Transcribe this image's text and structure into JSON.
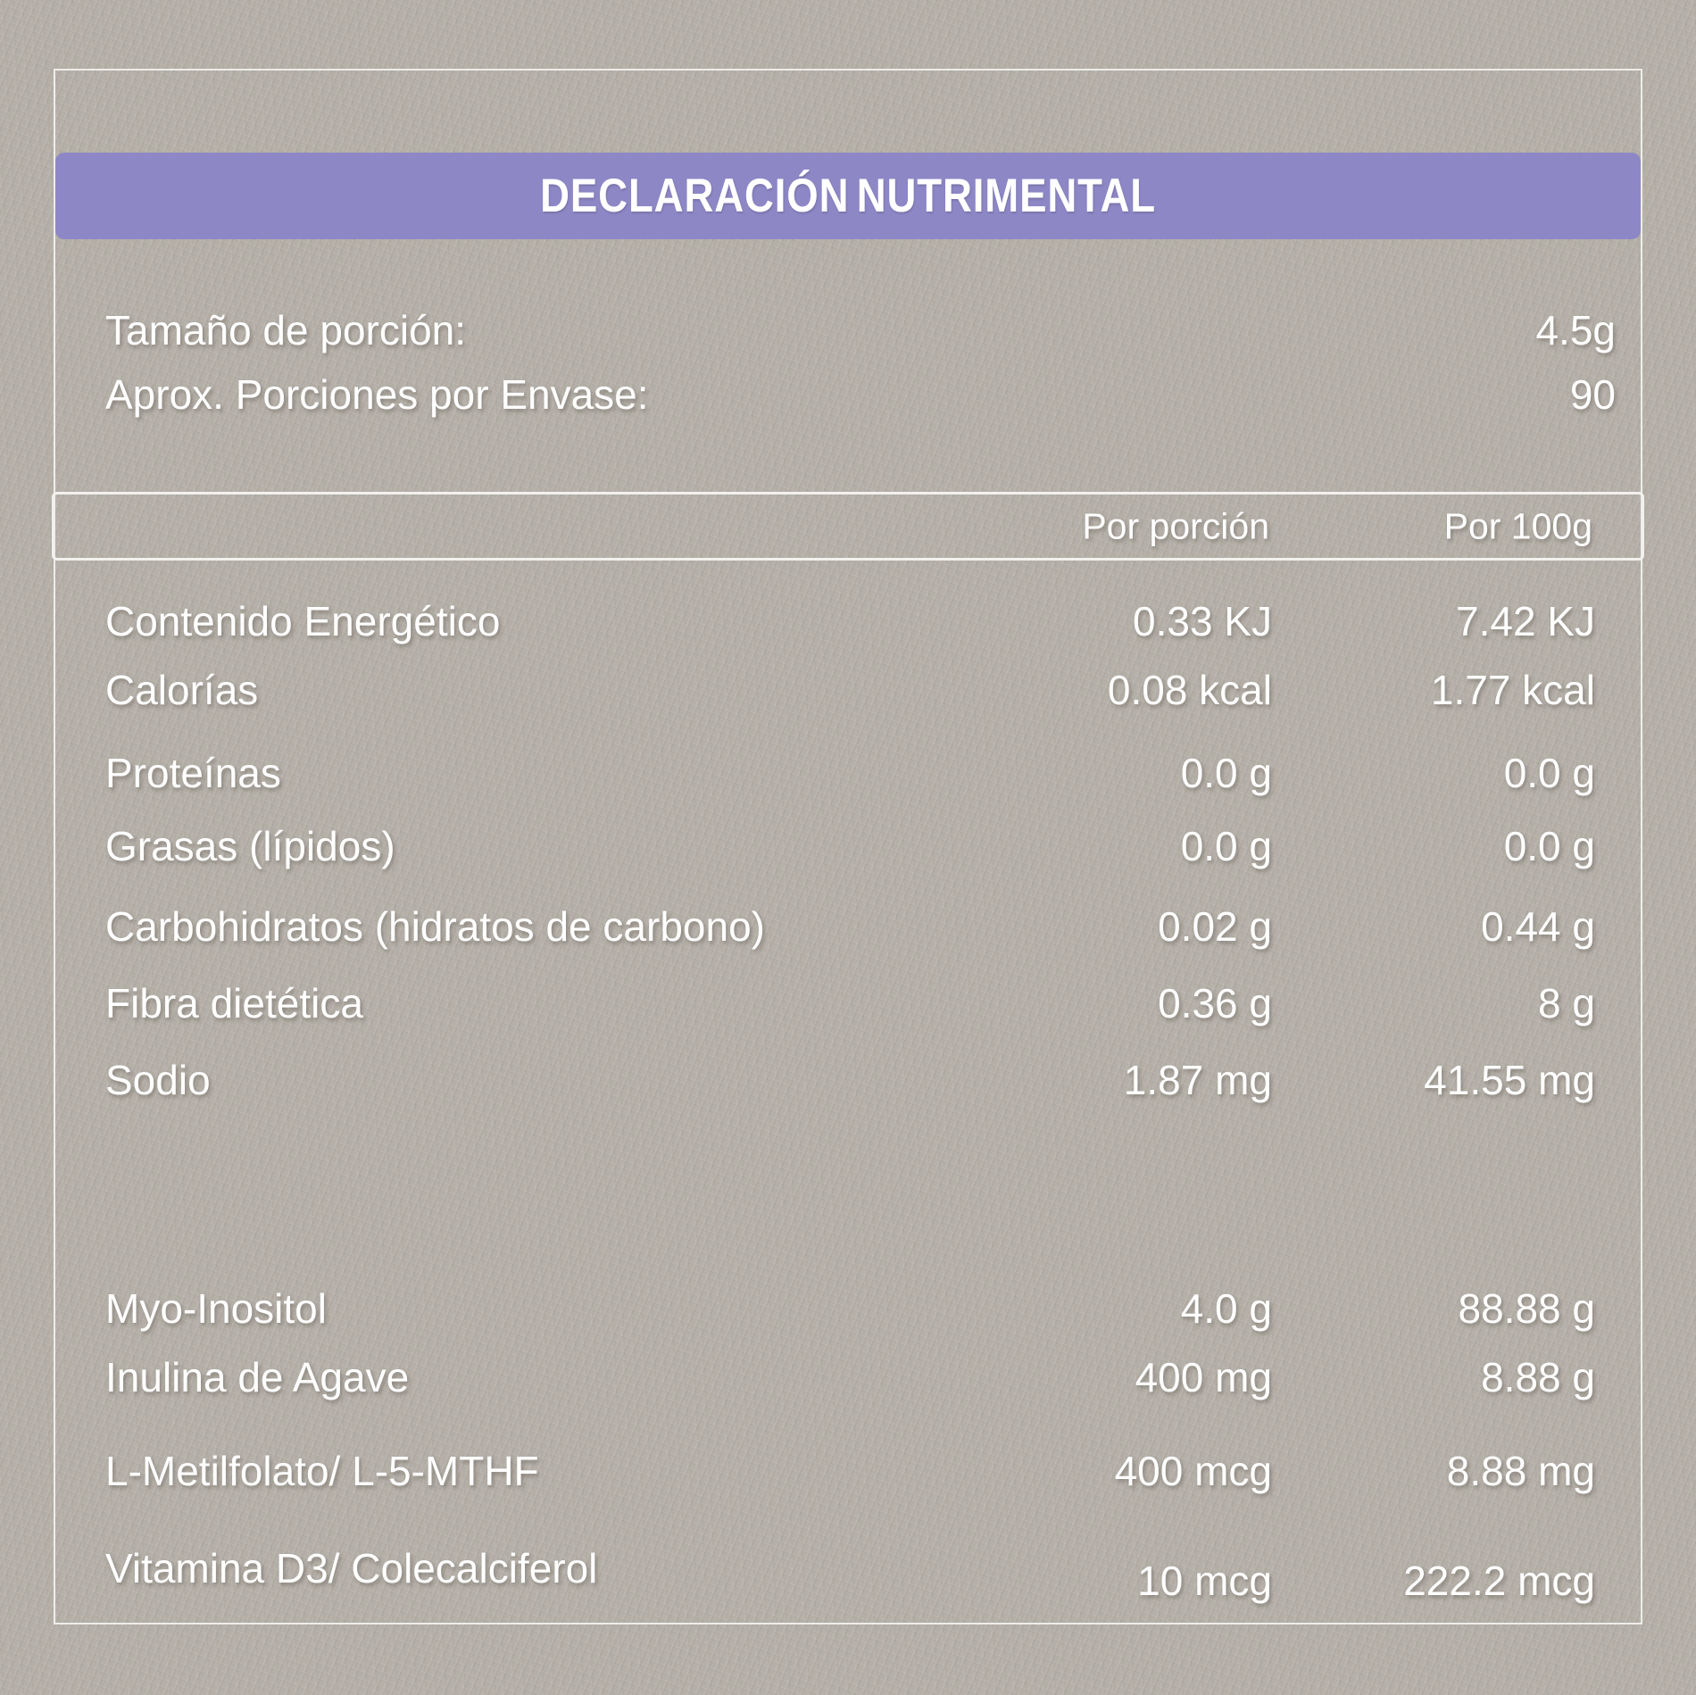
{
  "label": {
    "title": "DECLARACIÓN NUTRIMENTAL",
    "serving_info": [
      {
        "label": "Tamaño de porción:",
        "value": "4.5g"
      },
      {
        "label": "Aprox. Porciones por Envase:",
        "value": "90"
      }
    ],
    "columns": {
      "per_serving": "Por porción",
      "per_100g": "Por 100g"
    },
    "rows": [
      {
        "label": "Contenido Energético",
        "per_serving": "0.33 KJ",
        "per_100g": "7.42 KJ"
      },
      {
        "label": "Calorías",
        "per_serving": "0.08 kcal",
        "per_100g": "1.77 kcal"
      },
      {
        "label": "Proteínas",
        "per_serving": "0.0 g",
        "per_100g": "0.0 g"
      },
      {
        "label": "Grasas (lípidos)",
        "per_serving": "0.0 g",
        "per_100g": "0.0 g"
      },
      {
        "label": "Carbohidratos (hidratos de carbono)",
        "per_serving": "0.02 g",
        "per_100g": "0.44 g"
      },
      {
        "label": "Fibra dietética",
        "per_serving": "0.36 g",
        "per_100g": "8 g"
      },
      {
        "label": "Sodio",
        "per_serving": "1.87 mg",
        "per_100g": "41.55 mg"
      }
    ],
    "supplement_rows": [
      {
        "label": "Myo-Inositol",
        "per_serving": "4.0 g",
        "per_100g": "88.88 g"
      },
      {
        "label": "Inulina de Agave",
        "per_serving": "400 mg",
        "per_100g": "8.88 g"
      },
      {
        "label": "L-Metilfolato/ L-5-MTHF",
        "per_serving": "400 mcg",
        "per_100g": "8.88 mg"
      },
      {
        "label": "Vitamina D3/ Colecalciferol",
        "per_serving": "10 mcg",
        "per_100g": "222.2 mcg"
      }
    ],
    "colors": {
      "background": "#b4afa7",
      "accent": "#8d87c6",
      "text": "#ffffff",
      "border": "#f2f1ee"
    }
  }
}
